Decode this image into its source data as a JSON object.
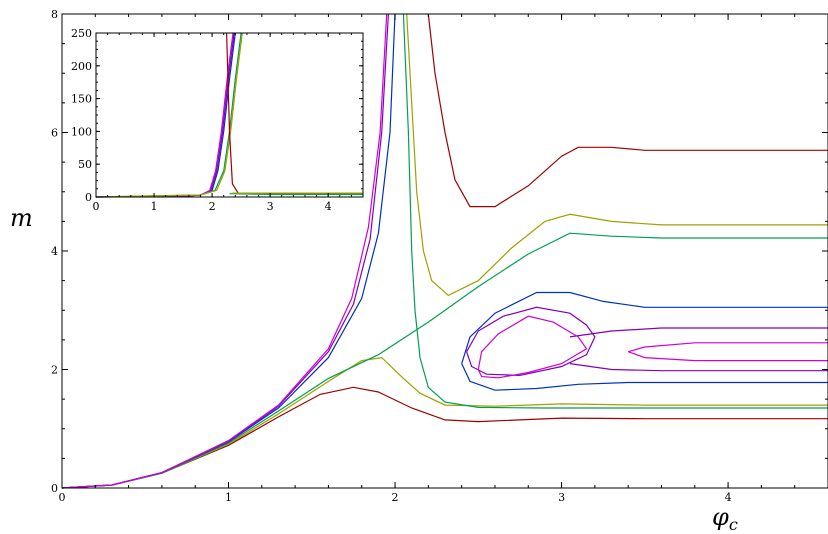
{
  "chart_data": [
    {
      "id": "main",
      "type": "line",
      "xlabel": "φ",
      "xlabel_sub": "c",
      "ylabel": "m",
      "xlim": [
        0,
        4.6
      ],
      "ylim": [
        0,
        8
      ],
      "xticks": [
        0,
        1,
        2,
        3,
        4
      ],
      "yticks": [
        0,
        2,
        4,
        6,
        8
      ],
      "xtick_labels": [
        "0",
        "1",
        "2",
        "3",
        "4"
      ],
      "ytick_labels": [
        "0",
        "2",
        "4",
        "6",
        "8"
      ],
      "grid": false,
      "series": [
        {
          "color": "#a00000",
          "points": [
            [
              0,
              0
            ],
            [
              0.3,
              0.05
            ],
            [
              0.6,
              0.25
            ],
            [
              1.0,
              0.72
            ],
            [
              1.3,
              1.2
            ],
            [
              1.55,
              1.58
            ],
            [
              1.75,
              1.7
            ],
            [
              1.9,
              1.62
            ],
            [
              2.1,
              1.35
            ],
            [
              2.3,
              1.15
            ],
            [
              2.5,
              1.12
            ],
            [
              3.0,
              1.18
            ],
            [
              3.5,
              1.17
            ],
            [
              4.6,
              1.17
            ]
          ]
        },
        {
          "color": "#a0a000",
          "points": [
            [
              0,
              0
            ],
            [
              0.3,
              0.05
            ],
            [
              0.6,
              0.25
            ],
            [
              1.0,
              0.74
            ],
            [
              1.3,
              1.25
            ],
            [
              1.6,
              1.8
            ],
            [
              1.8,
              2.15
            ],
            [
              1.92,
              2.2
            ],
            [
              2.05,
              1.85
            ],
            [
              2.15,
              1.6
            ],
            [
              2.3,
              1.4
            ],
            [
              2.6,
              1.38
            ],
            [
              3.0,
              1.42
            ],
            [
              3.5,
              1.4
            ],
            [
              4.6,
              1.4
            ]
          ]
        },
        {
          "color": "#00a050",
          "points": [
            [
              0,
              0
            ],
            [
              0.3,
              0.05
            ],
            [
              0.6,
              0.25
            ],
            [
              1.0,
              0.76
            ],
            [
              1.3,
              1.3
            ],
            [
              1.6,
              1.85
            ],
            [
              1.9,
              2.25
            ],
            [
              2.2,
              2.8
            ],
            [
              2.5,
              3.4
            ],
            [
              2.8,
              3.95
            ],
            [
              3.05,
              4.3
            ],
            [
              3.3,
              4.25
            ],
            [
              3.6,
              4.22
            ],
            [
              4.6,
              4.22
            ]
          ]
        },
        {
          "color": "#00a050",
          "points": [
            [
              2.05,
              8
            ],
            [
              2.08,
              6.0
            ],
            [
              2.1,
              4.0
            ],
            [
              2.12,
              3.0
            ],
            [
              2.15,
              2.2
            ],
            [
              2.2,
              1.7
            ],
            [
              2.3,
              1.45
            ],
            [
              2.5,
              1.36
            ],
            [
              2.9,
              1.35
            ],
            [
              3.5,
              1.35
            ],
            [
              4.6,
              1.35
            ]
          ]
        },
        {
          "color": "#a0a000",
          "points": [
            [
              2.07,
              8
            ],
            [
              2.1,
              6.5
            ],
            [
              2.13,
              5.0
            ],
            [
              2.17,
              4.0
            ],
            [
              2.22,
              3.5
            ],
            [
              2.32,
              3.25
            ],
            [
              2.5,
              3.5
            ],
            [
              2.7,
              4.05
            ],
            [
              2.9,
              4.5
            ],
            [
              3.05,
              4.62
            ],
            [
              3.3,
              4.5
            ],
            [
              3.6,
              4.44
            ],
            [
              4.6,
              4.44
            ]
          ]
        },
        {
          "color": "#a00000",
          "points": [
            [
              2.2,
              8
            ],
            [
              2.24,
              7.0
            ],
            [
              2.3,
              6.0
            ],
            [
              2.36,
              5.2
            ],
            [
              2.45,
              4.75
            ],
            [
              2.6,
              4.75
            ],
            [
              2.8,
              5.1
            ],
            [
              3.0,
              5.6
            ],
            [
              3.1,
              5.75
            ],
            [
              3.3,
              5.75
            ],
            [
              3.5,
              5.7
            ],
            [
              4.6,
              5.7
            ]
          ]
        },
        {
          "color": "#0030c0",
          "points": [
            [
              0,
              0
            ],
            [
              0.3,
              0.05
            ],
            [
              0.6,
              0.26
            ],
            [
              1.0,
              0.78
            ],
            [
              1.3,
              1.35
            ],
            [
              1.6,
              2.2
            ],
            [
              1.8,
              3.2
            ],
            [
              1.9,
              4.3
            ],
            [
              1.97,
              6.0
            ],
            [
              2.0,
              8
            ]
          ]
        },
        {
          "color": "#8000c0",
          "points": [
            [
              0,
              0
            ],
            [
              0.3,
              0.05
            ],
            [
              0.6,
              0.26
            ],
            [
              1.0,
              0.79
            ],
            [
              1.3,
              1.38
            ],
            [
              1.6,
              2.3
            ],
            [
              1.75,
              3.1
            ],
            [
              1.85,
              4.2
            ],
            [
              1.92,
              6.0
            ],
            [
              1.96,
              8
            ]
          ]
        },
        {
          "color": "#d000d0",
          "points": [
            [
              0,
              0
            ],
            [
              0.3,
              0.05
            ],
            [
              0.6,
              0.26
            ],
            [
              1.0,
              0.8
            ],
            [
              1.3,
              1.4
            ],
            [
              1.6,
              2.35
            ],
            [
              1.74,
              3.2
            ],
            [
              1.84,
              4.4
            ],
            [
              1.91,
              6.0
            ],
            [
              1.95,
              8
            ]
          ]
        },
        {
          "color": "#0030c0",
          "points": [
            [
              2.4,
              2.1
            ],
            [
              2.45,
              2.55
            ],
            [
              2.6,
              2.95
            ],
            [
              2.85,
              3.3
            ],
            [
              3.05,
              3.3
            ],
            [
              3.25,
              3.15
            ],
            [
              3.5,
              3.05
            ],
            [
              4.6,
              3.05
            ]
          ]
        },
        {
          "color": "#0030c0",
          "points": [
            [
              2.4,
              2.1
            ],
            [
              2.45,
              1.8
            ],
            [
              2.6,
              1.65
            ],
            [
              2.85,
              1.68
            ],
            [
              3.1,
              1.75
            ],
            [
              3.4,
              1.78
            ],
            [
              4.6,
              1.78
            ]
          ]
        },
        {
          "color": "#8000c0",
          "points": [
            [
              3.05,
              2.55
            ],
            [
              3.3,
              2.65
            ],
            [
              3.6,
              2.7
            ],
            [
              4.6,
              2.7
            ]
          ]
        },
        {
          "color": "#8000c0",
          "points": [
            [
              3.05,
              2.1
            ],
            [
              3.3,
              2.0
            ],
            [
              3.6,
              1.98
            ],
            [
              4.6,
              1.98
            ]
          ]
        },
        {
          "color": "#8000c0",
          "points": [
            [
              2.43,
              2.3
            ],
            [
              2.5,
              2.65
            ],
            [
              2.65,
              2.9
            ],
            [
              2.85,
              3.05
            ],
            [
              3.05,
              2.95
            ],
            [
              3.15,
              2.75
            ],
            [
              3.2,
              2.55
            ],
            [
              3.15,
              2.25
            ],
            [
              3.0,
              2.05
            ],
            [
              2.75,
              1.9
            ],
            [
              2.55,
              1.92
            ],
            [
              2.46,
              2.05
            ],
            [
              2.43,
              2.3
            ]
          ]
        },
        {
          "color": "#d000d0",
          "points": [
            [
              2.5,
              2.0
            ],
            [
              2.52,
              2.3
            ],
            [
              2.62,
              2.6
            ],
            [
              2.8,
              2.9
            ],
            [
              2.95,
              2.8
            ],
            [
              3.1,
              2.55
            ],
            [
              3.15,
              2.35
            ],
            [
              3.0,
              2.1
            ],
            [
              2.8,
              1.95
            ],
            [
              2.62,
              1.86
            ],
            [
              2.52,
              1.88
            ],
            [
              2.5,
              2.0
            ]
          ]
        },
        {
          "color": "#d000d0",
          "points": [
            [
              3.4,
              2.3
            ],
            [
              3.5,
              2.38
            ],
            [
              3.8,
              2.45
            ],
            [
              4.6,
              2.45
            ]
          ]
        },
        {
          "color": "#d000d0",
          "points": [
            [
              3.4,
              2.3
            ],
            [
              3.5,
              2.2
            ],
            [
              3.8,
              2.15
            ],
            [
              4.6,
              2.15
            ]
          ]
        }
      ]
    },
    {
      "id": "inset",
      "type": "line",
      "xlim": [
        0,
        4.6
      ],
      "ylim": [
        0,
        250
      ],
      "xticks": [
        0,
        1,
        2,
        3,
        4
      ],
      "yticks": [
        0,
        50,
        100,
        150,
        200,
        250
      ],
      "xtick_labels": [
        "0",
        "1",
        "2",
        "3",
        "4"
      ],
      "ytick_labels": [
        "0",
        "50",
        "100",
        "150",
        "200",
        "250"
      ],
      "grid": false,
      "series": [
        {
          "color": "#0030c0",
          "points": [
            [
              0,
              0
            ],
            [
              1.5,
              1
            ],
            [
              1.8,
              3
            ],
            [
              2.0,
              10
            ],
            [
              2.1,
              40
            ],
            [
              2.2,
              100
            ],
            [
              2.3,
              180
            ],
            [
              2.4,
              250
            ]
          ]
        },
        {
          "color": "#8000c0",
          "points": [
            [
              0,
              0
            ],
            [
              1.5,
              1
            ],
            [
              1.8,
              3
            ],
            [
              1.98,
              10
            ],
            [
              2.08,
              40
            ],
            [
              2.18,
              100
            ],
            [
              2.28,
              180
            ],
            [
              2.38,
              250
            ]
          ]
        },
        {
          "color": "#d000d0",
          "points": [
            [
              0,
              0
            ],
            [
              1.5,
              1
            ],
            [
              1.8,
              3
            ],
            [
              1.96,
              10
            ],
            [
              2.06,
              40
            ],
            [
              2.16,
              100
            ],
            [
              2.26,
              180
            ],
            [
              2.36,
              250
            ]
          ]
        },
        {
          "color": "#00a050",
          "points": [
            [
              0,
              0
            ],
            [
              1.8,
              3
            ],
            [
              2.05,
              10
            ],
            [
              2.2,
              40
            ],
            [
              2.3,
              100
            ],
            [
              2.4,
              180
            ],
            [
              2.5,
              250
            ]
          ]
        },
        {
          "color": "#a0a000",
          "points": [
            [
              0,
              0
            ],
            [
              1.8,
              3
            ],
            [
              2.08,
              10
            ],
            [
              2.22,
              40
            ],
            [
              2.32,
              100
            ],
            [
              2.42,
              180
            ],
            [
              2.52,
              250
            ]
          ]
        },
        {
          "color": "#a00000",
          "points": [
            [
              2.25,
              250
            ],
            [
              2.3,
              100
            ],
            [
              2.35,
              20
            ],
            [
              2.45,
              6
            ],
            [
              2.6,
              5
            ],
            [
              3.0,
              5
            ],
            [
              4.6,
              5
            ]
          ]
        },
        {
          "color": "#00a050",
          "points": [
            [
              2.3,
              5
            ],
            [
              3.0,
              4
            ],
            [
              4.6,
              4
            ]
          ]
        },
        {
          "color": "#a0a000",
          "points": [
            [
              2.35,
              6
            ],
            [
              3.0,
              6
            ],
            [
              4.6,
              6
            ]
          ]
        }
      ]
    }
  ]
}
